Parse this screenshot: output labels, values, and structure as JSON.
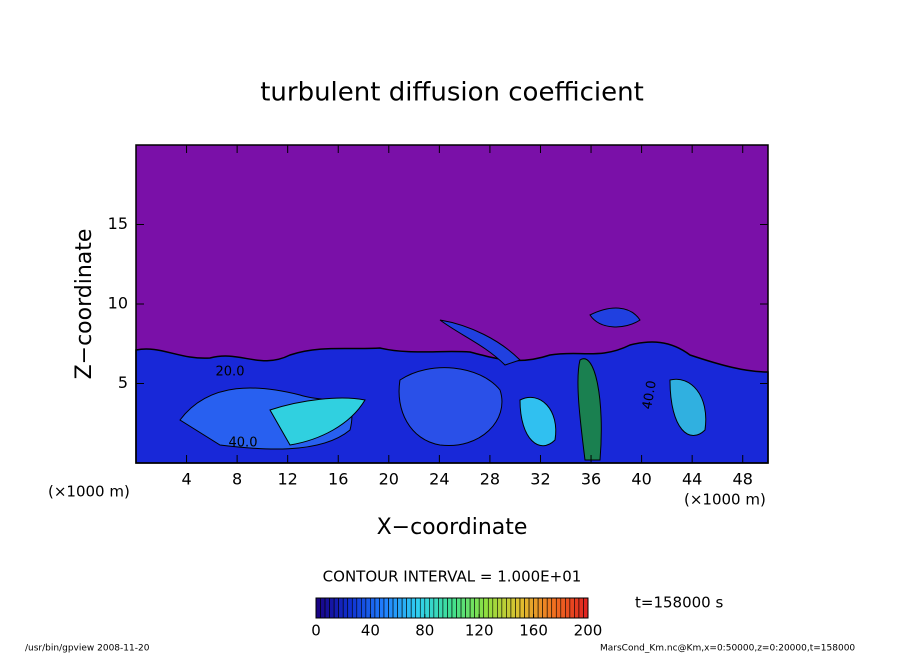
{
  "chart_data": {
    "type": "contour",
    "title": "turbulent diffusion coefficient",
    "x_label": "X−coordinate",
    "y_label": "Z−coordinate",
    "x_unit_label": "(×1000 m)",
    "y_unit_label": "(×1000 m)",
    "xlim": [
      0,
      50
    ],
    "xticks": [
      4,
      8,
      12,
      16,
      20,
      24,
      28,
      32,
      36,
      40,
      44,
      48
    ],
    "ylim": [
      0,
      20
    ],
    "yticks": [
      5,
      10,
      15
    ],
    "contour_labels": [
      "20.0",
      "40.0",
      "40.0"
    ],
    "contour_interval": "CONTOUR INTERVAL = 1.000E+01",
    "time_label": "t=158000 s",
    "colorbar": {
      "lim": [
        0,
        200
      ],
      "ticks": [
        0,
        40,
        80,
        120,
        160,
        200
      ],
      "colors": [
        "#1a0080",
        "#1030d0",
        "#2080ff",
        "#30d0f0",
        "#40e090",
        "#90e040",
        "#e0c030",
        "#f07020",
        "#e02020"
      ]
    },
    "footer_left": "/usr/bin/gpview   2008-11-20",
    "footer_right": "MarsCond_Km.nc@Km,x=0:50000,z=0:20000,t=158000"
  }
}
